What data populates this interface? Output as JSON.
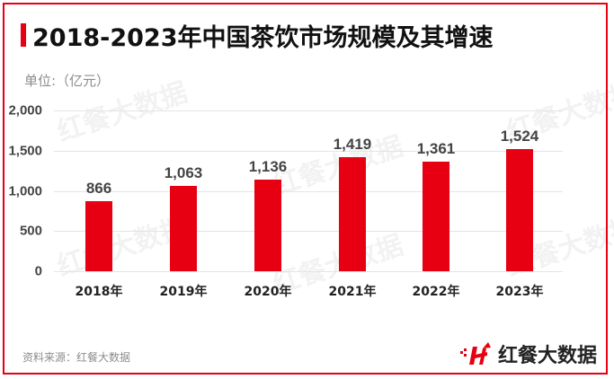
{
  "header": {
    "title": "2018-2023年中国茶饮市场规模及其增速",
    "unit": "单位:（亿元）"
  },
  "footer": {
    "source": "资料来源：红餐大数据",
    "logo_text": "红餐大数据",
    "logo_icon": "h-arrow-logo-icon"
  },
  "watermark": {
    "text": "红餐大数据"
  },
  "colors": {
    "accent": "#e60012",
    "bar": "#e60012",
    "grid": "#e4e4e4",
    "label": "#444444"
  },
  "yaxis": {
    "ticks": [
      "2,000",
      "1,500",
      "1,000",
      "500",
      "0"
    ]
  },
  "bars": [
    {
      "year": "2018年",
      "value_label": "866"
    },
    {
      "year": "2019年",
      "value_label": "1,063"
    },
    {
      "year": "2020年",
      "value_label": "1,136"
    },
    {
      "year": "2021年",
      "value_label": "1,419"
    },
    {
      "year": "2022年",
      "value_label": "1,361"
    },
    {
      "year": "2023年",
      "value_label": "1,524"
    }
  ],
  "chart_data": {
    "type": "bar",
    "title": "2018-2023年中国茶饮市场规模及其增速",
    "categories": [
      "2018年",
      "2019年",
      "2020年",
      "2021年",
      "2022年",
      "2023年"
    ],
    "values": [
      866,
      1063,
      1136,
      1419,
      1361,
      1524
    ],
    "xlabel": "",
    "ylabel": "单位:（亿元）",
    "ylim": [
      0,
      2000
    ],
    "yticks": [
      0,
      500,
      1000,
      1500,
      2000
    ],
    "grid": true,
    "legend": null,
    "data_labels": true,
    "source": "资料来源：红餐大数据"
  }
}
